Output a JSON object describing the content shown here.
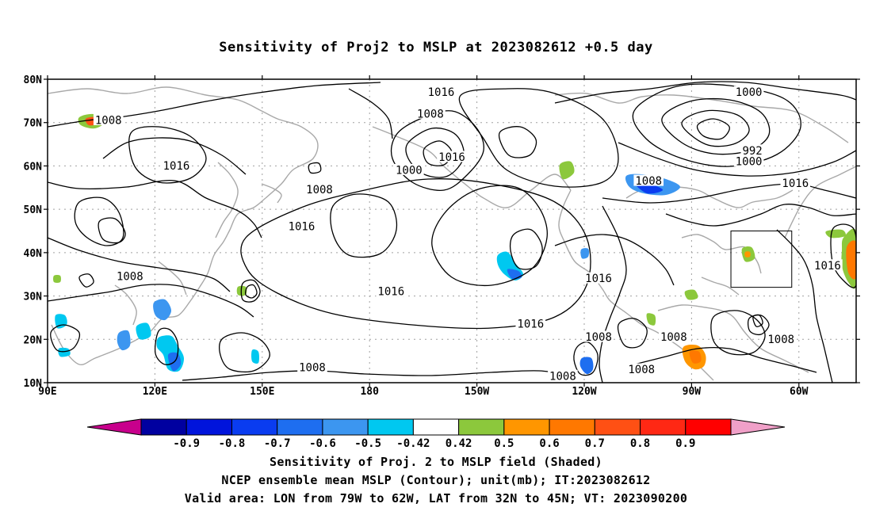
{
  "title": "Sensitivity of Proj2 to MSLP at 2023082612 +0.5 day",
  "map": {
    "lat_labels": [
      "80N",
      "70N",
      "60N",
      "50N",
      "40N",
      "30N",
      "20N",
      "10N"
    ],
    "lon_labels": [
      "90E",
      "120E",
      "150E",
      "180",
      "150W",
      "120W",
      "90W",
      "60W"
    ],
    "lat_values": [
      80,
      70,
      60,
      50,
      40,
      30,
      20,
      10
    ],
    "lon_values": [
      90,
      120,
      150,
      180,
      210,
      240,
      270,
      300
    ],
    "extent": {
      "lon_min": 90,
      "lon_max": 316,
      "lat_min": 10,
      "lat_max": 80
    },
    "contour_labels": [
      {
        "text": "1016",
        "lon": 200,
        "lat": 77
      },
      {
        "text": "1008",
        "lon": 107,
        "lat": 70.5
      },
      {
        "text": "1016",
        "lon": 126,
        "lat": 60
      },
      {
        "text": "1008",
        "lon": 197,
        "lat": 72
      },
      {
        "text": "1000",
        "lon": 286,
        "lat": 77
      },
      {
        "text": "1000",
        "lon": 191,
        "lat": 59
      },
      {
        "text": "1016",
        "lon": 203,
        "lat": 62
      },
      {
        "text": "992",
        "lon": 287,
        "lat": 63.5
      },
      {
        "text": "1000",
        "lon": 286,
        "lat": 61
      },
      {
        "text": "1008",
        "lon": 166,
        "lat": 54.5
      },
      {
        "text": "1008",
        "lon": 258,
        "lat": 56.5
      },
      {
        "text": "1016",
        "lon": 299,
        "lat": 56
      },
      {
        "text": "1016",
        "lon": 161,
        "lat": 46
      },
      {
        "text": "1008",
        "lon": 113,
        "lat": 34.5
      },
      {
        "text": "1016",
        "lon": 244,
        "lat": 34
      },
      {
        "text": "1016",
        "lon": 308,
        "lat": 37
      },
      {
        "text": "1016",
        "lon": 186,
        "lat": 31
      },
      {
        "text": "1016",
        "lon": 225,
        "lat": 23.5
      },
      {
        "text": "1008",
        "lon": 244,
        "lat": 20.5
      },
      {
        "text": "1008",
        "lon": 265,
        "lat": 20.5
      },
      {
        "text": "1008",
        "lon": 295,
        "lat": 20
      },
      {
        "text": "1008",
        "lon": 164,
        "lat": 13.5
      },
      {
        "text": "1008",
        "lon": 234,
        "lat": 11.5
      },
      {
        "text": "1008",
        "lon": 256,
        "lat": 13
      }
    ],
    "valid_box": {
      "lon_min": 281,
      "lon_max": 298,
      "lat_min": 32,
      "lat_max": 45
    }
  },
  "colorbar": {
    "labels": [
      "-0.9",
      "-0.8",
      "-0.7",
      "-0.6",
      "-0.5",
      "-0.42",
      "0.42",
      "0.5",
      "0.6",
      "0.7",
      "0.8",
      "0.9"
    ],
    "colors": [
      "#c8008c",
      "#0000a0",
      "#0014dc",
      "#0a3cf0",
      "#1e6ef0",
      "#3c96f0",
      "#00c8f0",
      "#ffffff",
      "#8cc83c",
      "#ff9600",
      "#ff7800",
      "#ff5014",
      "#ff2814",
      "#ff0000",
      "#f0a0c8"
    ]
  },
  "captions": [
    "Sensitivity of Proj. 2 to MSLP field (Shaded)",
    "NCEP ensemble mean MSLP (Contour); unit(mb); IT:2023082612",
    "Valid area: LON from 79W to 62W, LAT from 32N to 45N; VT: 2023090200"
  ]
}
